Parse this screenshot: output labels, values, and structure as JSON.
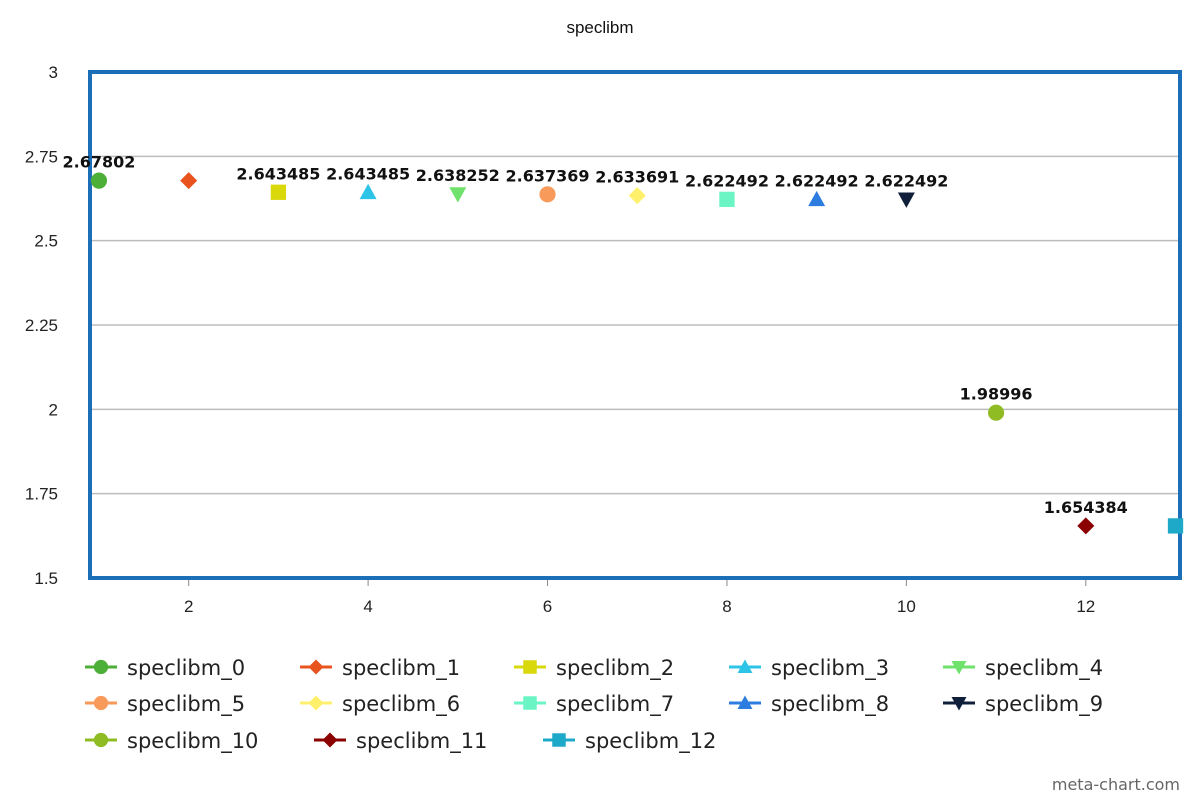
{
  "chart_data": {
    "type": "scatter",
    "title": "speclibm",
    "xlabel": "",
    "ylabel": "",
    "xlim": [
      0.9,
      13.05
    ],
    "ylim": [
      1.5,
      3
    ],
    "x_ticks": [
      "2",
      "4",
      "6",
      "8",
      "10",
      "12"
    ],
    "x_tick_values": [
      2,
      4,
      6,
      8,
      10,
      12
    ],
    "y_ticks": [
      "1.5",
      "1.75",
      "2",
      "2.25",
      "2.5",
      "2.75",
      "3"
    ],
    "y_tick_values": [
      1.5,
      1.75,
      2,
      2.25,
      2.5,
      2.75,
      3
    ],
    "grid": true,
    "legend_position": "bottom",
    "series": [
      {
        "name": "speclibm_0",
        "x": 1,
        "y": 2.67802,
        "label": "2.67802",
        "color": "#4caf37",
        "marker": "circle"
      },
      {
        "name": "speclibm_1",
        "x": 2,
        "y": 2.67802,
        "label": "",
        "color": "#e8531e",
        "marker": "diamond"
      },
      {
        "name": "speclibm_2",
        "x": 3,
        "y": 2.643485,
        "label": "2.643485",
        "color": "#d9d80b",
        "marker": "square"
      },
      {
        "name": "speclibm_3",
        "x": 4,
        "y": 2.643485,
        "label": "2.643485",
        "color": "#2ec4e8",
        "marker": "triangle-up"
      },
      {
        "name": "speclibm_4",
        "x": 5,
        "y": 2.638252,
        "label": "2.638252",
        "color": "#6ee26a",
        "marker": "triangle-down"
      },
      {
        "name": "speclibm_5",
        "x": 6,
        "y": 2.637369,
        "label": "2.637369",
        "color": "#f89a5a",
        "marker": "circle"
      },
      {
        "name": "speclibm_6",
        "x": 7,
        "y": 2.633691,
        "label": "2.633691",
        "color": "#fff06c",
        "marker": "diamond"
      },
      {
        "name": "speclibm_7",
        "x": 8,
        "y": 2.622492,
        "label": "2.622492",
        "color": "#6bf5c5",
        "marker": "square"
      },
      {
        "name": "speclibm_8",
        "x": 9,
        "y": 2.622492,
        "label": "2.622492",
        "color": "#2d7de0",
        "marker": "triangle-up"
      },
      {
        "name": "speclibm_9",
        "x": 10,
        "y": 2.622492,
        "label": "2.622492",
        "color": "#0f1f3a",
        "marker": "triangle-down"
      },
      {
        "name": "speclibm_10",
        "x": 11,
        "y": 1.98996,
        "label": "1.98996",
        "color": "#8ebc22",
        "marker": "circle"
      },
      {
        "name": "speclibm_11",
        "x": 12,
        "y": 1.654384,
        "label": "1.654384",
        "color": "#8b0000",
        "marker": "diamond"
      },
      {
        "name": "speclibm_12",
        "x": 13,
        "y": 1.654384,
        "label": "",
        "color": "#1ea9c9",
        "marker": "square"
      }
    ]
  },
  "footer": {
    "credit": "meta-chart.com"
  },
  "colors": {
    "plot_border": "#1a6fb8",
    "grid": "#bdbdbd",
    "axis": "#888888"
  }
}
